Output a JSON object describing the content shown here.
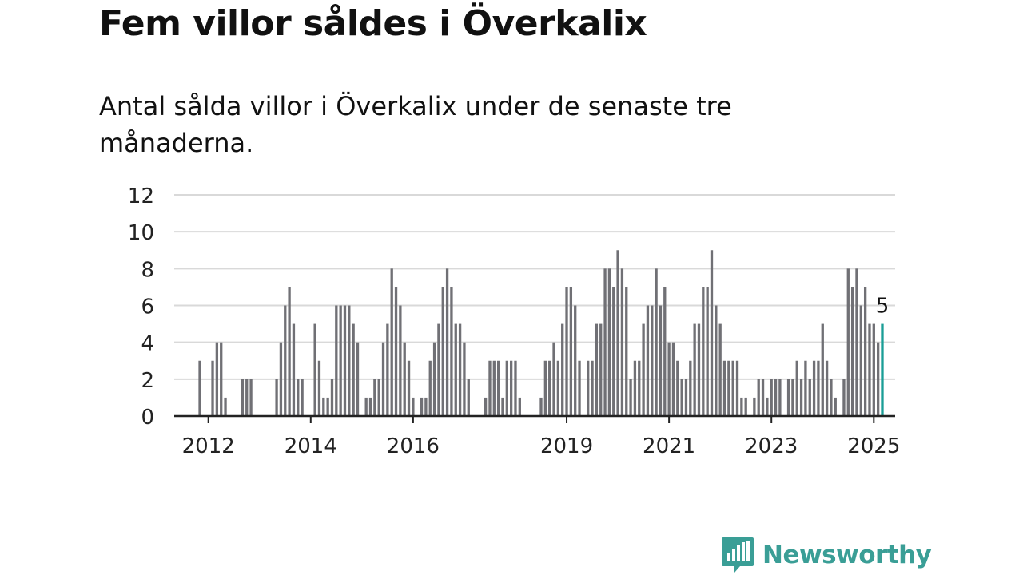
{
  "title": "Fem villor såldes i Överkalix",
  "subtitle": "Antal sålda villor i Överkalix under de senaste tre månaderna.",
  "logo": {
    "text": "Newsworthy",
    "color": "#3a9e96",
    "icon": "newsworthy-chat-bars-icon"
  },
  "colors": {
    "bar": "#707075",
    "highlight": "#1a9e96",
    "grid": "#d9d9d9",
    "axis": "#222222"
  },
  "chart_data": {
    "type": "bar",
    "x_unit": "month",
    "x_start": "2011-11",
    "xlim": [
      "2011-05",
      "2025-06"
    ],
    "ylim": [
      0,
      12
    ],
    "yticks": [
      0,
      2,
      4,
      6,
      8,
      10,
      12
    ],
    "xticks": [
      {
        "label": "2012",
        "month": "2012-01"
      },
      {
        "label": "2014",
        "month": "2014-01"
      },
      {
        "label": "2016",
        "month": "2016-01"
      },
      {
        "label": "2019",
        "month": "2019-01"
      },
      {
        "label": "2021",
        "month": "2021-01"
      },
      {
        "label": "2023",
        "month": "2023-01"
      },
      {
        "label": "2025",
        "month": "2025-01"
      }
    ],
    "grid": true,
    "legend": "none",
    "values": [
      3,
      0,
      0,
      3,
      4,
      4,
      1,
      0,
      0,
      0,
      2,
      2,
      2,
      0,
      0,
      0,
      0,
      0,
      2,
      4,
      6,
      7,
      5,
      2,
      2,
      0,
      0,
      5,
      3,
      1,
      1,
      2,
      6,
      6,
      6,
      6,
      5,
      4,
      0,
      1,
      1,
      2,
      2,
      4,
      5,
      8,
      7,
      6,
      4,
      3,
      1,
      0,
      1,
      1,
      3,
      4,
      5,
      7,
      8,
      7,
      5,
      5,
      4,
      2,
      0,
      0,
      0,
      1,
      3,
      3,
      3,
      1,
      3,
      3,
      3,
      1,
      0,
      0,
      0,
      0,
      1,
      3,
      3,
      4,
      3,
      5,
      7,
      7,
      6,
      3,
      0,
      3,
      3,
      5,
      5,
      8,
      8,
      7,
      9,
      8,
      7,
      2,
      3,
      3,
      5,
      6,
      6,
      8,
      6,
      7,
      4,
      4,
      3,
      2,
      2,
      3,
      5,
      5,
      7,
      7,
      9,
      6,
      5,
      3,
      3,
      3,
      3,
      1,
      1,
      0,
      1,
      2,
      2,
      1,
      2,
      2,
      2,
      0,
      2,
      2,
      3,
      2,
      3,
      2,
      3,
      3,
      5,
      3,
      2,
      1,
      0,
      2,
      8,
      7,
      8,
      6,
      7,
      5,
      5,
      4,
      5
    ],
    "highlight_last": true,
    "annotation": {
      "text": "5",
      "target": "last"
    }
  }
}
